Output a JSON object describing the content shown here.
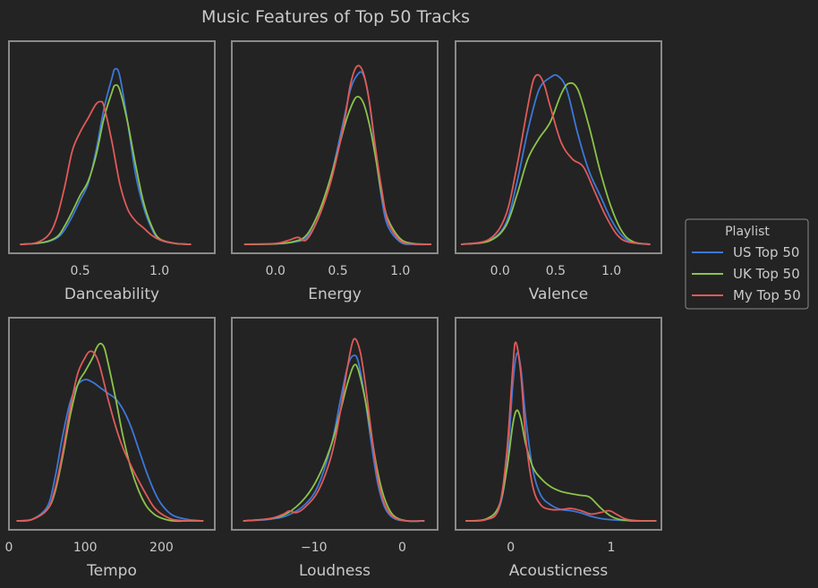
{
  "chart_data": {
    "type": "line",
    "title": "Music Features of Top 50 Tracks",
    "legend": {
      "title": "Playlist",
      "placement": "right",
      "entries": [
        "US Top 50",
        "UK Top 50",
        "My Top 50"
      ]
    },
    "colors": {
      "US Top 50": "#3c78d8",
      "UK Top 50": "#8bc34a",
      "My Top 50": "#e05a5a"
    },
    "grid": false,
    "panels": [
      {
        "feature": "Danceability",
        "xlabel": "Danceability",
        "xlim": [
          0.05,
          1.35
        ],
        "ylim": [
          0,
          4.0
        ],
        "xticks": [
          {
            "v": 0.5,
            "t": "0.5"
          },
          {
            "v": 1.0,
            "t": "1.0"
          }
        ],
        "series": [
          {
            "name": "US Top 50",
            "x": [
              0.12,
              0.22,
              0.3,
              0.36,
              0.4,
              0.45,
              0.5,
              0.55,
              0.6,
              0.65,
              0.7,
              0.72,
              0.75,
              0.8,
              0.85,
              0.9,
              0.95,
              1.0,
              1.1,
              1.2
            ],
            "y": [
              0,
              0.02,
              0.06,
              0.15,
              0.3,
              0.6,
              0.95,
              1.3,
              2.0,
              2.9,
              3.55,
              3.75,
              3.6,
              2.6,
              1.5,
              0.8,
              0.35,
              0.1,
              0.02,
              0
            ]
          },
          {
            "name": "UK Top 50",
            "x": [
              0.12,
              0.22,
              0.3,
              0.36,
              0.4,
              0.45,
              0.5,
              0.55,
              0.6,
              0.65,
              0.7,
              0.72,
              0.75,
              0.8,
              0.85,
              0.9,
              0.95,
              1.0,
              1.1,
              1.2
            ],
            "y": [
              0,
              0.02,
              0.07,
              0.18,
              0.38,
              0.7,
              1.05,
              1.35,
              1.9,
              2.7,
              3.25,
              3.4,
              3.3,
              2.6,
              1.7,
              0.9,
              0.4,
              0.12,
              0.02,
              0
            ]
          },
          {
            "name": "My Top 50",
            "x": [
              0.12,
              0.22,
              0.3,
              0.35,
              0.4,
              0.45,
              0.5,
              0.55,
              0.6,
              0.63,
              0.65,
              0.7,
              0.75,
              0.8,
              0.85,
              0.9,
              0.95,
              1.0,
              1.1,
              1.2
            ],
            "y": [
              0,
              0.03,
              0.2,
              0.55,
              1.2,
              2.0,
              2.4,
              2.7,
              3.0,
              3.05,
              2.95,
              2.2,
              1.3,
              0.75,
              0.5,
              0.35,
              0.2,
              0.1,
              0.02,
              0
            ]
          }
        ]
      },
      {
        "feature": "Energy",
        "xlabel": "Energy",
        "xlim": [
          -0.35,
          1.3
        ],
        "ylim": [
          0,
          4.0
        ],
        "xticks": [
          {
            "v": 0.0,
            "t": "0.0"
          },
          {
            "v": 0.5,
            "t": "0.5"
          },
          {
            "v": 1.0,
            "t": "1.0"
          }
        ],
        "series": [
          {
            "name": "US Top 50",
            "x": [
              -0.25,
              0.0,
              0.15,
              0.25,
              0.35,
              0.45,
              0.55,
              0.6,
              0.65,
              0.7,
              0.75,
              0.8,
              0.85,
              0.9,
              1.0,
              1.1,
              1.25
            ],
            "y": [
              0,
              0.01,
              0.05,
              0.15,
              0.6,
              1.5,
              2.7,
              3.3,
              3.6,
              3.65,
              3.1,
              2.0,
              1.0,
              0.4,
              0.05,
              0,
              0
            ]
          },
          {
            "name": "UK Top 50",
            "x": [
              -0.25,
              0.0,
              0.15,
              0.25,
              0.35,
              0.45,
              0.55,
              0.6,
              0.65,
              0.7,
              0.75,
              0.8,
              0.85,
              0.9,
              1.0,
              1.1,
              1.25
            ],
            "y": [
              0,
              0.01,
              0.06,
              0.2,
              0.7,
              1.5,
              2.5,
              2.9,
              3.15,
              3.05,
              2.6,
              1.9,
              1.1,
              0.55,
              0.12,
              0.02,
              0
            ]
          },
          {
            "name": "My Top 50",
            "x": [
              -0.25,
              0.0,
              0.1,
              0.18,
              0.25,
              0.35,
              0.45,
              0.55,
              0.6,
              0.65,
              0.7,
              0.75,
              0.8,
              0.85,
              0.9,
              1.0,
              1.1,
              1.25
            ],
            "y": [
              0,
              0.02,
              0.08,
              0.15,
              0.1,
              0.6,
              1.4,
              2.6,
              3.4,
              3.8,
              3.7,
              3.1,
              2.1,
              1.2,
              0.5,
              0.08,
              0.01,
              0
            ]
          }
        ]
      },
      {
        "feature": "Valence",
        "xlabel": "Valence",
        "xlim": [
          -0.4,
          1.45
        ],
        "ylim": [
          0,
          2.3
        ],
        "xticks": [
          {
            "v": 0.0,
            "t": "0.0"
          },
          {
            "v": 0.5,
            "t": "0.5"
          },
          {
            "v": 1.0,
            "t": "1.0"
          }
        ],
        "series": [
          {
            "name": "US Top 50",
            "x": [
              -0.35,
              -0.1,
              0.05,
              0.15,
              0.25,
              0.35,
              0.45,
              0.52,
              0.6,
              0.7,
              0.8,
              0.9,
              1.0,
              1.1,
              1.2,
              1.35
            ],
            "y": [
              0,
              0.05,
              0.25,
              0.75,
              1.4,
              1.9,
              2.05,
              2.07,
              1.9,
              1.35,
              0.9,
              0.6,
              0.3,
              0.1,
              0.02,
              0
            ]
          },
          {
            "name": "UK Top 50",
            "x": [
              -0.35,
              -0.1,
              0.05,
              0.15,
              0.25,
              0.35,
              0.45,
              0.55,
              0.62,
              0.7,
              0.8,
              0.9,
              1.0,
              1.1,
              1.2,
              1.35
            ],
            "y": [
              0,
              0.04,
              0.22,
              0.6,
              1.05,
              1.3,
              1.5,
              1.85,
              1.98,
              1.9,
              1.45,
              0.9,
              0.45,
              0.15,
              0.03,
              0
            ]
          },
          {
            "name": "My Top 50",
            "x": [
              -0.35,
              -0.1,
              0.05,
              0.15,
              0.25,
              0.3,
              0.35,
              0.4,
              0.45,
              0.55,
              0.65,
              0.75,
              0.85,
              0.95,
              1.05,
              1.15,
              1.35
            ],
            "y": [
              0,
              0.06,
              0.35,
              0.95,
              1.7,
              2.02,
              2.08,
              1.95,
              1.7,
              1.25,
              1.05,
              0.95,
              0.65,
              0.35,
              0.12,
              0.03,
              0
            ]
          }
        ]
      },
      {
        "feature": "Tempo",
        "xlabel": "Tempo",
        "xlim": [
          0,
          270
        ],
        "ylim": [
          0,
          0.0135
        ],
        "xticks": [
          {
            "v": 0,
            "t": "0"
          },
          {
            "v": 100,
            "t": "100"
          },
          {
            "v": 200,
            "t": "200"
          }
        ],
        "series": [
          {
            "name": "US Top 50",
            "x": [
              10,
              30,
              50,
              60,
              70,
              80,
              90,
              100,
              110,
              120,
              130,
              140,
              150,
              160,
              170,
              180,
              190,
              200,
              215,
              235,
              255
            ],
            "y": [
              0,
              0.0001,
              0.001,
              0.003,
              0.006,
              0.0085,
              0.0098,
              0.0102,
              0.01,
              0.0096,
              0.0092,
              0.0088,
              0.008,
              0.0068,
              0.0052,
              0.0036,
              0.0022,
              0.0012,
              0.0004,
              0.0001,
              0
            ]
          },
          {
            "name": "UK Top 50",
            "x": [
              10,
              30,
              50,
              60,
              70,
              80,
              90,
              100,
              110,
              115,
              120,
              125,
              130,
              140,
              150,
              160,
              170,
              180,
              190,
              200,
              215,
              235,
              255
            ],
            "y": [
              0,
              0.0001,
              0.0008,
              0.002,
              0.0045,
              0.0075,
              0.0098,
              0.0108,
              0.0118,
              0.0125,
              0.0128,
              0.0125,
              0.0114,
              0.0088,
              0.006,
              0.0038,
              0.0022,
              0.0011,
              0.0005,
              0.0002,
              0,
              0,
              0
            ]
          },
          {
            "name": "My Top 50",
            "x": [
              10,
              30,
              50,
              60,
              70,
              80,
              90,
              100,
              105,
              110,
              115,
              120,
              130,
              140,
              150,
              160,
              170,
              180,
              190,
              200,
              215,
              235,
              255
            ],
            "y": [
              0,
              0.0001,
              0.0008,
              0.0022,
              0.0048,
              0.008,
              0.0106,
              0.0118,
              0.0122,
              0.0122,
              0.0118,
              0.011,
              0.0088,
              0.0068,
              0.0052,
              0.004,
              0.0029,
              0.0019,
              0.001,
              0.0005,
              0.0001,
              0,
              0
            ]
          }
        ]
      },
      {
        "feature": "Loudness",
        "xlabel": "Loudness",
        "xlim": [
          -19.3,
          4.0
        ],
        "ylim": [
          0,
          0.34
        ],
        "xticks": [
          {
            "v": -10,
            "t": "−10"
          },
          {
            "v": 0,
            "t": "0"
          }
        ],
        "series": [
          {
            "name": "US Top 50",
            "x": [
              -18,
              -15,
              -13,
              -11,
              -9.5,
              -8,
              -7,
              -6.2,
              -5.6,
              -5,
              -4.2,
              -3.5,
              -2.8,
              -2,
              -1,
              0.5,
              2.5
            ],
            "y": [
              0,
              0.003,
              0.01,
              0.03,
              0.065,
              0.14,
              0.22,
              0.28,
              0.3,
              0.29,
              0.22,
              0.14,
              0.07,
              0.025,
              0.005,
              0,
              0
            ]
          },
          {
            "name": "UK Top 50",
            "x": [
              -18,
              -15,
              -13,
              -11,
              -9.5,
              -8,
              -7,
              -6.2,
              -5.5,
              -5,
              -4.2,
              -3.5,
              -2.8,
              -2,
              -1,
              0.5,
              2.5
            ],
            "y": [
              0,
              0.004,
              0.014,
              0.042,
              0.08,
              0.14,
              0.2,
              0.25,
              0.282,
              0.275,
              0.22,
              0.155,
              0.09,
              0.04,
              0.01,
              0,
              0
            ]
          },
          {
            "name": "My Top 50",
            "x": [
              -18,
              -15,
              -13.5,
              -12.8,
              -12,
              -11,
              -9.5,
              -8,
              -7,
              -6.2,
              -5.5,
              -4.8,
              -4.2,
              -3.5,
              -2.8,
              -2,
              -1,
              0.5,
              2.5
            ],
            "y": [
              0,
              0.004,
              0.012,
              0.018,
              0.015,
              0.025,
              0.055,
              0.12,
              0.2,
              0.28,
              0.33,
              0.31,
              0.25,
              0.16,
              0.08,
              0.03,
              0.007,
              0,
              0
            ]
          }
        ]
      },
      {
        "feature": "Acousticness",
        "xlabel": "Acousticness",
        "xlim": [
          -0.55,
          1.5
        ],
        "ylim": [
          0,
          3.3
        ],
        "xticks": [
          {
            "v": 0,
            "t": "0"
          },
          {
            "v": 1,
            "t": "1"
          }
        ],
        "series": [
          {
            "name": "US Top 50",
            "x": [
              -0.45,
              -0.25,
              -0.12,
              -0.04,
              0.02,
              0.06,
              0.1,
              0.15,
              0.22,
              0.3,
              0.4,
              0.5,
              0.6,
              0.7,
              0.8,
              0.9,
              1.0,
              1.1,
              1.25,
              1.45
            ],
            "y": [
              0,
              0.02,
              0.2,
              0.95,
              2.4,
              2.95,
              2.7,
              1.8,
              0.9,
              0.45,
              0.28,
              0.2,
              0.18,
              0.14,
              0.08,
              0.04,
              0.02,
              0.01,
              0,
              0
            ]
          },
          {
            "name": "UK Top 50",
            "x": [
              -0.45,
              -0.25,
              -0.12,
              -0.04,
              0.02,
              0.06,
              0.1,
              0.15,
              0.22,
              0.3,
              0.4,
              0.5,
              0.6,
              0.7,
              0.75,
              0.8,
              0.9,
              1.0,
              1.1,
              1.25,
              1.45
            ],
            "y": [
              0,
              0.03,
              0.25,
              0.9,
              1.7,
              1.95,
              1.8,
              1.35,
              0.95,
              0.75,
              0.6,
              0.52,
              0.48,
              0.45,
              0.44,
              0.4,
              0.22,
              0.08,
              0.02,
              0,
              0
            ]
          },
          {
            "name": "My Top 50",
            "x": [
              -0.45,
              -0.25,
              -0.12,
              -0.04,
              0.02,
              0.05,
              0.1,
              0.15,
              0.22,
              0.3,
              0.4,
              0.5,
              0.6,
              0.7,
              0.8,
              0.9,
              0.98,
              1.05,
              1.15,
              1.3,
              1.45
            ],
            "y": [
              0,
              0.02,
              0.22,
              1.2,
              2.7,
              3.15,
              2.6,
              1.45,
              0.6,
              0.28,
              0.2,
              0.2,
              0.22,
              0.18,
              0.12,
              0.15,
              0.18,
              0.12,
              0.03,
              0,
              0
            ]
          }
        ]
      }
    ]
  }
}
